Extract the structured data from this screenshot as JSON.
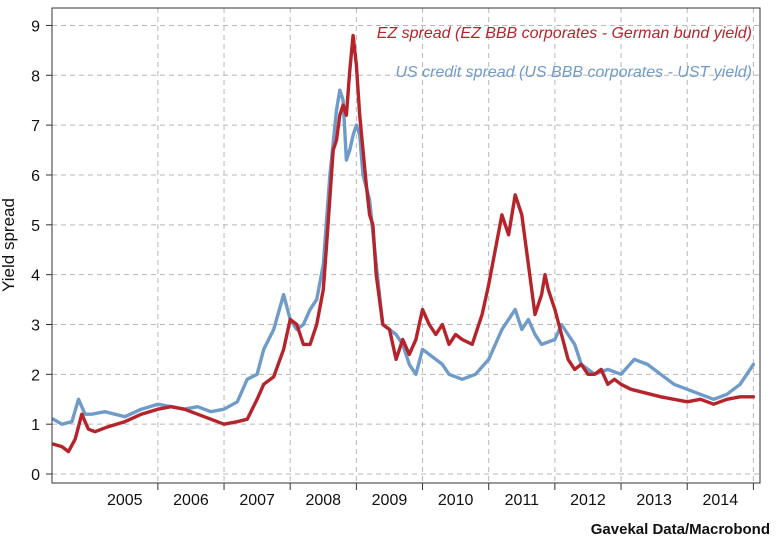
{
  "source": "Gavekal Data/Macrobond",
  "colors": {
    "ez": "#b5242b",
    "us": "#6f9bc9",
    "grid": "#b8b8b8",
    "axis": "#333333"
  },
  "chart_data": {
    "type": "line",
    "title": "",
    "xlabel": "",
    "ylabel": "Yield spread",
    "xlim": [
      2004.4,
      2015.1
    ],
    "ylim": [
      0,
      9
    ],
    "yticks": [
      0,
      1,
      2,
      3,
      4,
      5,
      6,
      7,
      8,
      9
    ],
    "xticks": [
      "2005",
      "2006",
      "2007",
      "2008",
      "2009",
      "2010",
      "2011",
      "2012",
      "2013",
      "2014"
    ],
    "grid": true,
    "legend": "top-right",
    "series": [
      {
        "name": "EZ spread (EZ BBB corporates - German bund yield)",
        "x": [
          2004.42,
          2004.55,
          2004.65,
          2004.75,
          2004.85,
          2004.95,
          2005.05,
          2005.25,
          2005.5,
          2005.75,
          2006.0,
          2006.2,
          2006.4,
          2006.6,
          2006.8,
          2007.0,
          2007.2,
          2007.35,
          2007.5,
          2007.6,
          2007.75,
          2007.9,
          2008.0,
          2008.1,
          2008.2,
          2008.3,
          2008.4,
          2008.5,
          2008.55,
          2008.65,
          2008.7,
          2008.75,
          2008.8,
          2008.85,
          2008.9,
          2008.95,
          2009.0,
          2009.05,
          2009.1,
          2009.15,
          2009.2,
          2009.25,
          2009.3,
          2009.4,
          2009.5,
          2009.6,
          2009.7,
          2009.8,
          2009.9,
          2010.0,
          2010.1,
          2010.2,
          2010.3,
          2010.4,
          2010.5,
          2010.6,
          2010.75,
          2010.9,
          2011.0,
          2011.1,
          2011.2,
          2011.3,
          2011.4,
          2011.5,
          2011.6,
          2011.7,
          2011.8,
          2011.85,
          2011.9,
          2011.95,
          2012.0,
          2012.1,
          2012.2,
          2012.3,
          2012.4,
          2012.5,
          2012.6,
          2012.7,
          2012.8,
          2012.9,
          2013.0,
          2013.15,
          2013.3,
          2013.45,
          2013.6,
          2013.8,
          2014.0,
          2014.2,
          2014.4,
          2014.6,
          2014.8,
          2015.0
        ],
        "values": [
          0.6,
          0.55,
          0.45,
          0.7,
          1.2,
          0.9,
          0.85,
          0.95,
          1.05,
          1.2,
          1.3,
          1.35,
          1.3,
          1.2,
          1.1,
          1.0,
          1.05,
          1.1,
          1.5,
          1.8,
          1.95,
          2.5,
          3.1,
          3.0,
          2.6,
          2.6,
          3.0,
          3.7,
          4.6,
          6.5,
          6.7,
          7.2,
          7.4,
          7.2,
          8.1,
          8.8,
          8.2,
          7.2,
          6.5,
          5.8,
          5.2,
          5.0,
          4.0,
          3.0,
          2.9,
          2.3,
          2.7,
          2.4,
          2.7,
          3.3,
          3.0,
          2.8,
          3.0,
          2.6,
          2.8,
          2.7,
          2.6,
          3.2,
          3.8,
          4.5,
          5.2,
          4.8,
          5.6,
          5.2,
          4.2,
          3.2,
          3.6,
          4.0,
          3.7,
          3.5,
          3.3,
          2.8,
          2.3,
          2.1,
          2.2,
          2.0,
          2.0,
          2.1,
          1.8,
          1.9,
          1.8,
          1.7,
          1.65,
          1.6,
          1.55,
          1.5,
          1.45,
          1.5,
          1.4,
          1.5,
          1.55,
          1.55
        ]
      },
      {
        "name": "US credit spread (US BBB corporates - UST yield)",
        "x": [
          2004.42,
          2004.55,
          2004.7,
          2004.8,
          2004.9,
          2005.0,
          2005.2,
          2005.5,
          2005.75,
          2006.0,
          2006.2,
          2006.4,
          2006.6,
          2006.8,
          2007.0,
          2007.2,
          2007.35,
          2007.5,
          2007.6,
          2007.75,
          2007.9,
          2008.0,
          2008.1,
          2008.2,
          2008.3,
          2008.4,
          2008.5,
          2008.6,
          2008.7,
          2008.75,
          2008.8,
          2008.85,
          2008.9,
          2008.95,
          2009.0,
          2009.05,
          2009.1,
          2009.2,
          2009.3,
          2009.4,
          2009.5,
          2009.6,
          2009.7,
          2009.8,
          2009.9,
          2010.0,
          2010.1,
          2010.2,
          2010.3,
          2010.4,
          2010.5,
          2010.6,
          2010.8,
          2011.0,
          2011.2,
          2011.4,
          2011.5,
          2011.6,
          2011.7,
          2011.8,
          2012.0,
          2012.1,
          2012.2,
          2012.3,
          2012.4,
          2012.5,
          2012.6,
          2012.8,
          2013.0,
          2013.2,
          2013.4,
          2013.6,
          2013.8,
          2014.0,
          2014.2,
          2014.4,
          2014.6,
          2014.8,
          2015.0
        ],
        "values": [
          1.1,
          1.0,
          1.05,
          1.5,
          1.2,
          1.2,
          1.25,
          1.15,
          1.3,
          1.4,
          1.35,
          1.3,
          1.35,
          1.25,
          1.3,
          1.45,
          1.9,
          2.0,
          2.5,
          2.9,
          3.6,
          3.1,
          2.9,
          3.0,
          3.3,
          3.5,
          4.2,
          6.0,
          7.3,
          7.7,
          7.5,
          6.3,
          6.5,
          6.8,
          7.0,
          6.8,
          6.0,
          5.5,
          4.2,
          3.0,
          2.9,
          2.8,
          2.6,
          2.2,
          2.0,
          2.5,
          2.4,
          2.3,
          2.2,
          2.0,
          1.95,
          1.9,
          2.0,
          2.3,
          2.9,
          3.3,
          2.9,
          3.1,
          2.8,
          2.6,
          2.7,
          3.0,
          2.8,
          2.6,
          2.2,
          2.1,
          2.0,
          2.1,
          2.0,
          2.3,
          2.2,
          2.0,
          1.8,
          1.7,
          1.6,
          1.5,
          1.6,
          1.8,
          2.2
        ]
      }
    ]
  }
}
